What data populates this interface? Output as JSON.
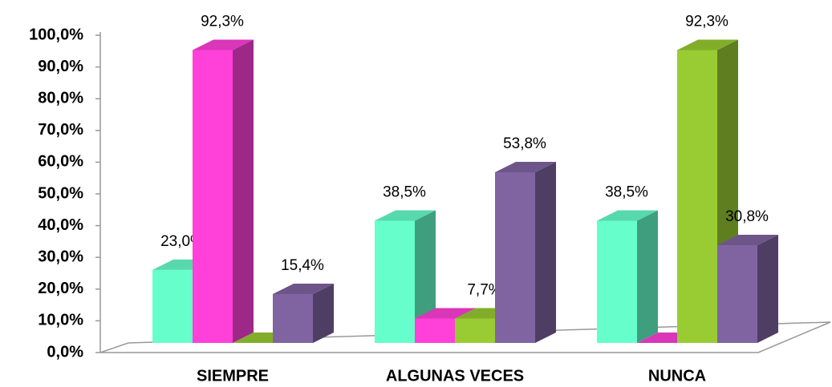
{
  "chart_data": {
    "type": "bar3d",
    "categories": [
      "SIEMPRE",
      "ALGUNAS VECES",
      "NUNCA"
    ],
    "series": [
      {
        "color": "#66ffcc",
        "values": [
          23.0,
          38.5,
          38.5
        ],
        "value_labels": [
          "23,0%",
          "38,5%",
          "38,5%"
        ]
      },
      {
        "color": "#ff40d9",
        "values": [
          92.3,
          7.7,
          0
        ],
        "value_labels": [
          "92,3%",
          null,
          null
        ]
      },
      {
        "color": "#99cc33",
        "values": [
          0,
          7.7,
          92.3
        ],
        "value_labels": [
          null,
          "7,7%",
          "92,3%"
        ]
      },
      {
        "color": "#8064a2",
        "values": [
          15.4,
          53.8,
          30.8
        ],
        "value_labels": [
          "15,4%",
          "53,8%",
          "30,8%"
        ]
      }
    ],
    "ylim": [
      0,
      100
    ],
    "yticks": [
      {
        "value": 0,
        "label": "0,0%"
      },
      {
        "value": 10,
        "label": "10,0%"
      },
      {
        "value": 20,
        "label": "20,0%"
      },
      {
        "value": 30,
        "label": "30,0%"
      },
      {
        "value": 40,
        "label": "40,0%"
      },
      {
        "value": 50,
        "label": "50,0%"
      },
      {
        "value": 60,
        "label": "60,0%"
      },
      {
        "value": 70,
        "label": "70,0%"
      },
      {
        "value": 80,
        "label": "80,0%"
      },
      {
        "value": 90,
        "label": "90,0%"
      },
      {
        "value": 100,
        "label": "100,0%"
      }
    ]
  }
}
